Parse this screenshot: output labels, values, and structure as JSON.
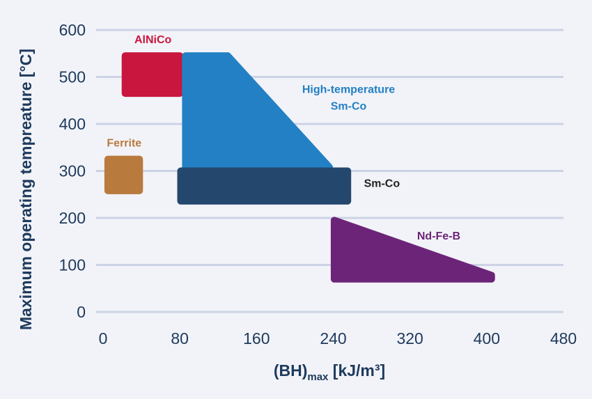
{
  "chart_data": {
    "type": "area",
    "title": "",
    "ylabel": "Maximum operating tempreature [°C]",
    "xlabel": {
      "main": "(BH)",
      "subscript": "max",
      "unit": " [kJ/m³]"
    },
    "xlim": [
      0,
      480
    ],
    "ylim": [
      0,
      600
    ],
    "xticks": [
      0,
      80,
      160,
      240,
      320,
      400,
      480
    ],
    "yticks": [
      0,
      100,
      200,
      300,
      400,
      500,
      600
    ],
    "grid": "horizontal",
    "regions": [
      {
        "name": "AlNiCo",
        "label_lines": [
          "AlNiCo"
        ],
        "color": "#c8163f",
        "label_color": "#c8163f",
        "points": [
          [
            23,
            545
          ],
          [
            80,
            545
          ],
          [
            80,
            465
          ],
          [
            23,
            465
          ]
        ]
      },
      {
        "name": "Ferrite",
        "label_lines": [
          "Ferrite"
        ],
        "color": "#b97a3e",
        "label_color": "#b97a3e",
        "points": [
          [
            5,
            325
          ],
          [
            38,
            325
          ],
          [
            38,
            258
          ],
          [
            5,
            258
          ]
        ]
      },
      {
        "name": "High-temperature Sm-Co",
        "label_lines": [
          "High-temperature",
          "Sm-Co"
        ],
        "color": "#2380c4",
        "label_color": "#2380c4",
        "points": [
          [
            86,
            545
          ],
          [
            130,
            545
          ],
          [
            236,
            308
          ],
          [
            86,
            308
          ]
        ]
      },
      {
        "name": "Sm-Co",
        "label_lines": [
          "Sm-Co"
        ],
        "color": "#23476d",
        "label_color": "#222222",
        "points": [
          [
            81,
            300
          ],
          [
            255,
            300
          ],
          [
            255,
            236
          ],
          [
            81,
            236
          ]
        ]
      },
      {
        "name": "Nd-Fe-B",
        "label_lines": [
          "Nd-Fe-B"
        ],
        "color": "#6c2478",
        "label_color": "#6c2478",
        "points": [
          [
            241,
            195
          ],
          [
            241,
            70
          ],
          [
            405,
            70
          ],
          [
            405,
            78
          ]
        ]
      }
    ]
  }
}
